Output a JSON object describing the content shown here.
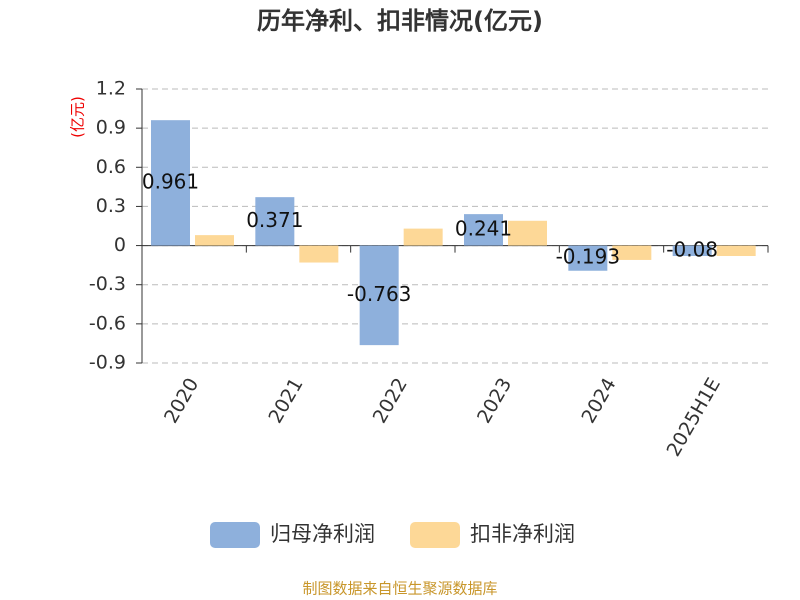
{
  "chart_data": {
    "type": "bar",
    "title": "历年净利、扣非情况(亿元)",
    "y_label": "(亿元)",
    "source": "制图数据来自恒生聚源数据库",
    "categories": [
      "2020",
      "2021",
      "2022",
      "2023",
      "2024",
      "2025H1E"
    ],
    "series": [
      {
        "name": "归母净利润",
        "color": "#8eb0dc",
        "values": [
          0.961,
          0.371,
          -0.763,
          0.241,
          -0.193,
          -0.08
        ]
      },
      {
        "name": "扣非净利润",
        "color": "#fdd897",
        "values": [
          0.08,
          -0.13,
          0.13,
          0.19,
          -0.11,
          -0.08
        ]
      }
    ],
    "ylim": [
      -0.9,
      1.2
    ],
    "yticks": [
      -0.9,
      -0.6,
      -0.3,
      0,
      0.3,
      0.6,
      0.9,
      1.2
    ],
    "grid": true,
    "legend": "bottom"
  }
}
